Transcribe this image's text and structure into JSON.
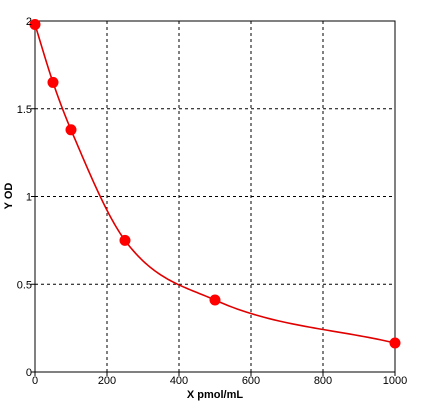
{
  "chart_data": {
    "type": "scatter",
    "title": "",
    "xlabel": "X pmol/mL",
    "ylabel": "Y OD",
    "xlim": [
      0,
      1000
    ],
    "ylim": [
      0,
      2
    ],
    "x_ticks": [
      0,
      200,
      400,
      600,
      800,
      1000
    ],
    "y_ticks": [
      0,
      0.5,
      1,
      1.5,
      2
    ],
    "x_tick_labels": [
      "0",
      "200",
      "400",
      "600",
      "800",
      "1000"
    ],
    "y_tick_labels": [
      "0",
      "0.5",
      "1",
      "1.5",
      "2"
    ],
    "grid": true,
    "grid_style": "dashed",
    "legend": "none",
    "colors": {
      "series": "#ff0000",
      "curve": "#e00000",
      "grid": "#000000",
      "frame": "#000000"
    },
    "series": [
      {
        "points": [
          {
            "x": 0,
            "y": 1.98
          },
          {
            "x": 50,
            "y": 1.65
          },
          {
            "x": 100,
            "y": 1.38
          },
          {
            "x": 250,
            "y": 0.75
          },
          {
            "x": 500,
            "y": 0.41
          },
          {
            "x": 1000,
            "y": 0.165
          }
        ],
        "fit_curve": true
      }
    ]
  }
}
